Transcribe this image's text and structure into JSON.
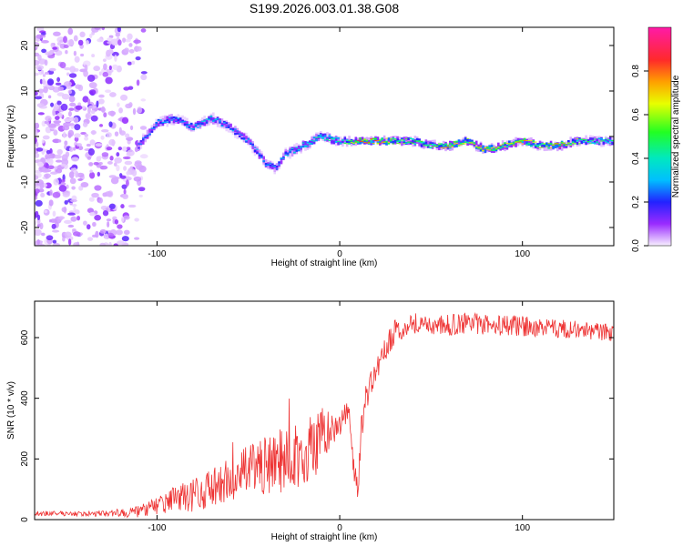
{
  "title": "S199.2026.003.01.38.G08",
  "chart_data": [
    {
      "type": "heatmap",
      "xlabel": "Height of straight line (km)",
      "ylabel": "Frequency (Hz)",
      "xlim": [
        -167,
        150
      ],
      "ylim": [
        -24,
        24
      ],
      "x_ticks": [
        "-100",
        "0",
        "100"
      ],
      "y_ticks": [
        "-20",
        "-10",
        "0",
        "10",
        "20"
      ],
      "colorbar_label": "Normalized spectral amplitude",
      "colorbar_ticks": [
        "0.0",
        "0.2",
        "0.4",
        "0.6",
        "0.8"
      ],
      "colorbar_range": [
        0,
        1
      ],
      "ridge": {
        "x": [
          -110,
          -100,
          -90,
          -80,
          -70,
          -60,
          -50,
          -40,
          -35,
          -30,
          -20,
          -10,
          0,
          10,
          20,
          30,
          40,
          50,
          60,
          70,
          80,
          90,
          100,
          110,
          120,
          130,
          140,
          150
        ],
        "freq": [
          -2,
          3,
          4,
          2,
          4,
          2,
          -1,
          -6,
          -7,
          -4,
          -2,
          0,
          -1,
          -1,
          -1,
          -1,
          -1,
          -2,
          -2,
          -1,
          -3,
          -2,
          -1,
          -2,
          -2,
          -1,
          -1,
          -1
        ],
        "amplitude": [
          0.25,
          0.35,
          0.3,
          0.35,
          0.4,
          0.3,
          0.3,
          0.3,
          0.3,
          0.35,
          0.4,
          0.45,
          0.45,
          0.85,
          0.9,
          0.65,
          0.6,
          0.6,
          0.85,
          0.7,
          0.85,
          0.7,
          0.85,
          0.6,
          0.85,
          0.6,
          0.5,
          0.5
        ]
      }
    },
    {
      "type": "line",
      "xlabel": "Height of straight line (km)",
      "ylabel": "SNR (10 * v/v)",
      "xlim": [
        -167,
        150
      ],
      "ylim": [
        0,
        720
      ],
      "x_ticks": [
        "-100",
        "0",
        "100"
      ],
      "y_ticks": [
        "0",
        "200",
        "400",
        "600"
      ],
      "color": "#ee3333",
      "series": [
        {
          "name": "SNR",
          "x": [
            -167,
            -150,
            -130,
            -110,
            -100,
            -90,
            -80,
            -70,
            -60,
            -50,
            -40,
            -30,
            -20,
            -10,
            0,
            5,
            8,
            10,
            12,
            15,
            20,
            25,
            30,
            40,
            50,
            60,
            70,
            80,
            90,
            100,
            110,
            120,
            130,
            140,
            150
          ],
          "values": [
            20,
            20,
            20,
            25,
            45,
            70,
            80,
            100,
            130,
            160,
            180,
            200,
            220,
            260,
            320,
            360,
            150,
            100,
            310,
            420,
            480,
            560,
            620,
            650,
            640,
            640,
            650,
            640,
            640,
            640,
            630,
            630,
            625,
            620,
            615
          ],
          "noise": [
            8,
            8,
            10,
            20,
            30,
            40,
            55,
            65,
            75,
            85,
            95,
            110,
            110,
            110,
            45,
            30,
            40,
            30,
            50,
            50,
            45,
            40,
            40,
            35,
            35,
            35,
            35,
            35,
            35,
            35,
            30,
            30,
            30,
            30,
            30
          ]
        }
      ]
    }
  ]
}
